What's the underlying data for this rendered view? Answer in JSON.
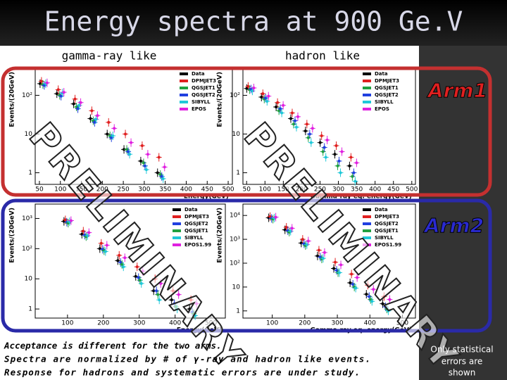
{
  "slide": {
    "title": "Energy spectra at 900 Ge.V",
    "columns": [
      "gamma-ray like",
      "hadron like"
    ],
    "arms": [
      "Arm1",
      "Arm2"
    ],
    "watermark": "PRELIMINARY",
    "notes": [
      "Acceptance is different for the two arms.",
      "Spectra are normalized by # of γ-ray and hadron like events.",
      "Response for hadrons and systematic errors are under study."
    ],
    "side_note": [
      "Only statistical",
      "errors are",
      "shown"
    ]
  },
  "chart_data": [
    {
      "type": "scatter",
      "xlabel": "Energy(GeV)",
      "ylabel": "Events/(20GeV)",
      "log_y": true,
      "xlim": [
        40,
        510
      ],
      "xticks": [
        50,
        100,
        150,
        200,
        250,
        300,
        350,
        400,
        450,
        500
      ],
      "ylim": [
        0.5,
        500
      ],
      "yticks": [
        1,
        10,
        {
          "value": 100,
          "label": "10²"
        }
      ],
      "x": [
        60,
        100,
        140,
        180,
        220,
        260,
        300,
        340
      ],
      "series": [
        {
          "name": "Data",
          "color": "#000000",
          "values": [
            200,
            110,
            60,
            25,
            10,
            4,
            2,
            1
          ]
        },
        {
          "name": "DPMJET3",
          "color": "#e02020",
          "values": [
            230,
            140,
            80,
            40,
            20,
            10,
            5,
            2.5
          ]
        },
        {
          "name": "QGSJET1",
          "color": "#20a040",
          "values": [
            190,
            100,
            50,
            22,
            9,
            4,
            1.8,
            0.9
          ]
        },
        {
          "name": "QGSJET2",
          "color": "#2040e0",
          "values": [
            180,
            95,
            45,
            20,
            8,
            3.5,
            1.5,
            0.8
          ]
        },
        {
          "name": "SIBYLL",
          "color": "#20c8d8",
          "values": [
            200,
            115,
            55,
            24,
            9,
            3,
            1.2,
            0.7
          ]
        },
        {
          "name": "EPOS",
          "color": "#e020e0",
          "values": [
            210,
            120,
            65,
            30,
            14,
            6,
            3,
            1.4
          ]
        }
      ]
    },
    {
      "type": "scatter",
      "xlabel": "Gamma-ray eq. energy(GeV)",
      "ylabel": "Events/(20GeV)",
      "log_y": true,
      "xlim": [
        40,
        510
      ],
      "xticks": [
        50,
        100,
        150,
        200,
        250,
        300,
        350,
        400,
        450,
        500
      ],
      "ylim": [
        0.5,
        500
      ],
      "yticks": [
        1,
        10,
        {
          "value": 100,
          "label": "10²"
        }
      ],
      "x": [
        60,
        100,
        140,
        180,
        220,
        260,
        300,
        340
      ],
      "series": [
        {
          "name": "Data",
          "color": "#000000",
          "values": [
            150,
            90,
            50,
            25,
            12,
            6,
            3,
            1.5
          ]
        },
        {
          "name": "DPMJET3",
          "color": "#e02020",
          "values": [
            170,
            110,
            65,
            35,
            18,
            9,
            5,
            2.5
          ]
        },
        {
          "name": "QGSJET1",
          "color": "#20a040",
          "values": [
            140,
            80,
            40,
            18,
            8,
            3.5,
            1.5,
            0.8
          ]
        },
        {
          "name": "QGSJET2",
          "color": "#2040e0",
          "values": [
            145,
            85,
            45,
            22,
            10,
            4.5,
            2,
            1
          ]
        },
        {
          "name": "SIBYLL",
          "color": "#20c8d8",
          "values": [
            130,
            70,
            35,
            15,
            6,
            2.5,
            1,
            0.6
          ]
        },
        {
          "name": "EPOS",
          "color": "#e020e0",
          "values": [
            155,
            95,
            55,
            28,
            14,
            7,
            3.5,
            1.8
          ]
        }
      ]
    },
    {
      "type": "scatter",
      "xlabel": "Energy(GeV)",
      "ylabel": "Events/(20GeV)",
      "log_y": true,
      "xlim": [
        10,
        540
      ],
      "xticks": [
        100,
        200,
        300,
        400,
        500
      ],
      "ylim": [
        0.5,
        3000
      ],
      "yticks": [
        1,
        10,
        {
          "value": 100,
          "label": "10²"
        },
        {
          "value": 1000,
          "label": "10³"
        }
      ],
      "x": [
        100,
        150,
        200,
        250,
        300,
        350,
        400,
        450
      ],
      "series": [
        {
          "name": "Data",
          "color": "#000000",
          "values": [
            800,
            300,
            100,
            40,
            12,
            4,
            2,
            1
          ]
        },
        {
          "name": "DPMJET3",
          "color": "#e02020",
          "values": [
            900,
            380,
            150,
            60,
            25,
            10,
            4,
            2
          ]
        },
        {
          "name": "QGSJET2",
          "color": "#2040e0",
          "values": [
            750,
            280,
            95,
            35,
            11,
            4,
            1.5,
            0.8
          ]
        },
        {
          "name": "QGSJET1",
          "color": "#20a040",
          "values": [
            700,
            250,
            85,
            30,
            9,
            3,
            1.2,
            0.7
          ]
        },
        {
          "name": "SIBYLL",
          "color": "#20c8d8",
          "values": [
            780,
            270,
            80,
            25,
            7,
            2,
            1,
            0.6
          ]
        },
        {
          "name": "EPOS1.99",
          "color": "#e020e0",
          "values": [
            850,
            340,
            130,
            50,
            18,
            7,
            3,
            1.5
          ]
        }
      ]
    },
    {
      "type": "scatter",
      "xlabel": "Gamma-ray eq. energy(GeV)",
      "ylabel": "Events/(20GeV)",
      "log_y": true,
      "xlim": [
        10,
        540
      ],
      "xticks": [
        100,
        200,
        300,
        400,
        500
      ],
      "ylim": [
        0.5,
        30000
      ],
      "yticks": [
        1,
        10,
        {
          "value": 100,
          "label": "10²"
        },
        {
          "value": 1000,
          "label": "10³"
        },
        {
          "value": 10000,
          "label": "10⁴"
        }
      ],
      "x": [
        100,
        150,
        200,
        250,
        300,
        350,
        400,
        450
      ],
      "series": [
        {
          "name": "Data",
          "color": "#000000",
          "values": [
            8000,
            2500,
            700,
            200,
            60,
            15,
            5,
            2
          ]
        },
        {
          "name": "DPMJET3",
          "color": "#e02020",
          "values": [
            9000,
            3200,
            1000,
            350,
            110,
            35,
            12,
            4
          ]
        },
        {
          "name": "QGSJET2",
          "color": "#2040e0",
          "values": [
            7500,
            2300,
            650,
            180,
            50,
            13,
            4,
            1.5
          ]
        },
        {
          "name": "QGSJET1",
          "color": "#20a040",
          "values": [
            7000,
            2000,
            550,
            150,
            40,
            10,
            3,
            1.2
          ]
        },
        {
          "name": "SIBYLL",
          "color": "#20c8d8",
          "values": [
            7800,
            2200,
            600,
            160,
            40,
            9,
            2.5,
            1
          ]
        },
        {
          "name": "EPOS1.99",
          "color": "#e020e0",
          "values": [
            8500,
            2900,
            850,
            280,
            85,
            25,
            8,
            3
          ]
        }
      ]
    }
  ]
}
